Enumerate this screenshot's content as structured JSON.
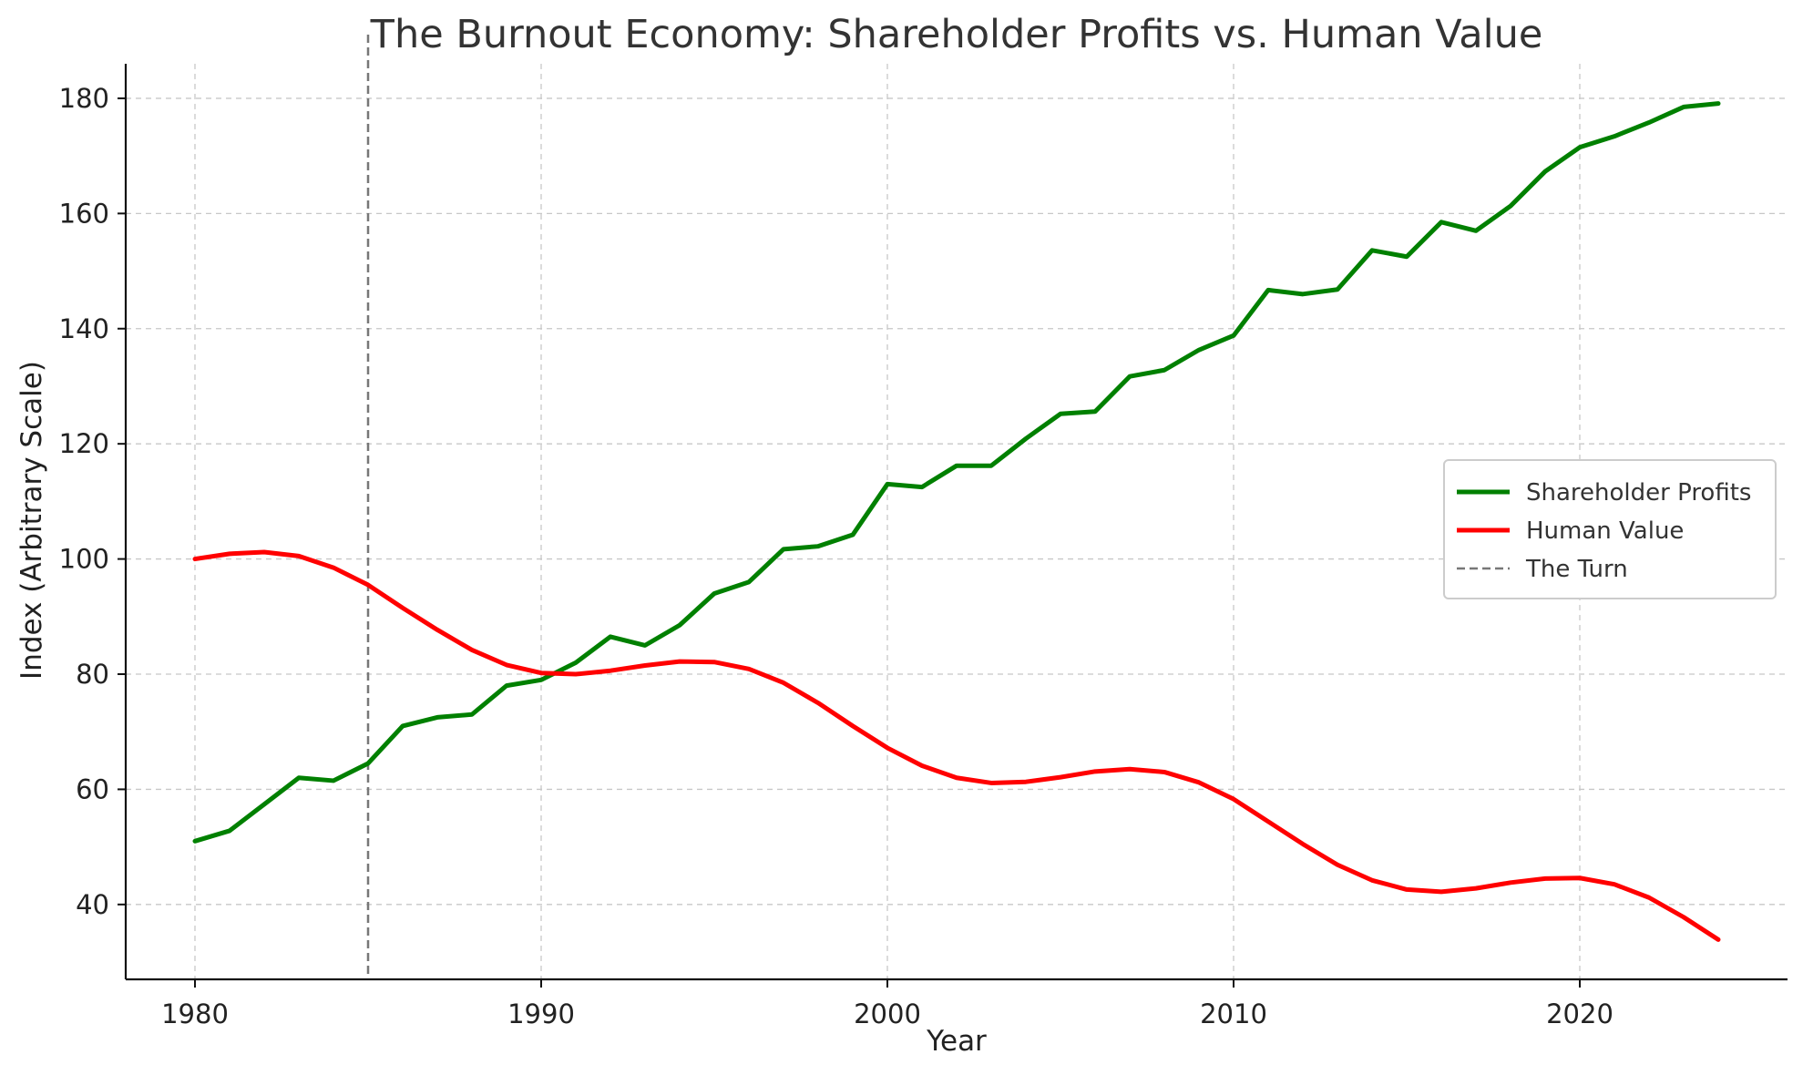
{
  "chart_data": {
    "type": "line",
    "title": "The Burnout Economy: Shareholder Profits vs. Human Value",
    "xlabel": "Year",
    "ylabel": "Index (Arbitrary Scale)",
    "xlim": [
      1978,
      2026
    ],
    "ylim": [
      27,
      186
    ],
    "xticks": [
      1980,
      1990,
      2000,
      2010,
      2020
    ],
    "yticks": [
      40,
      60,
      80,
      100,
      120,
      140,
      160,
      180
    ],
    "grid": true,
    "legend_position": "center-right",
    "x": [
      1980,
      1981,
      1982,
      1983,
      1984,
      1985,
      1986,
      1987,
      1988,
      1989,
      1990,
      1991,
      1992,
      1993,
      1994,
      1995,
      1996,
      1997,
      1998,
      1999,
      2000,
      2001,
      2002,
      2003,
      2004,
      2005,
      2006,
      2007,
      2008,
      2009,
      2010,
      2011,
      2012,
      2013,
      2014,
      2015,
      2016,
      2017,
      2018,
      2019,
      2020,
      2021,
      2022,
      2023,
      2024
    ],
    "series": [
      {
        "name": "Shareholder Profits",
        "color": "#008000",
        "style": "solid",
        "values": [
          51,
          52.8,
          57.4,
          62,
          61.5,
          64.5,
          71,
          72.5,
          73,
          78,
          79,
          82,
          86.5,
          85,
          88.5,
          94,
          96,
          101.7,
          102.2,
          104.2,
          113,
          112.5,
          116.2,
          116.2,
          120.9,
          125.2,
          125.6,
          131.7,
          132.8,
          136.3,
          138.8,
          146.7,
          146,
          146.8,
          153.6,
          152.5,
          158.5,
          157,
          161.3,
          167.3,
          171.5,
          173.4,
          175.8,
          178.5,
          179.1
        ]
      },
      {
        "name": "Human Value",
        "color": "#ff0000",
        "style": "solid",
        "values": [
          100,
          100.9,
          101.2,
          100.5,
          98.5,
          95.5,
          91.5,
          87.7,
          84.2,
          81.6,
          80.2,
          80,
          80.6,
          81.5,
          82.2,
          82.1,
          80.9,
          78.5,
          75,
          71,
          67.2,
          64.1,
          62,
          61.1,
          61.3,
          62.1,
          63.1,
          63.5,
          63,
          61.2,
          58.3,
          54.4,
          50.5,
          46.9,
          44.2,
          42.6,
          42.2,
          42.8,
          43.8,
          44.5,
          44.6,
          43.5,
          41.2,
          37.8,
          33.9
        ]
      }
    ],
    "vlines": [
      {
        "name": "The Turn",
        "x": 1985,
        "color": "#777777",
        "style": "dashed"
      }
    ]
  }
}
